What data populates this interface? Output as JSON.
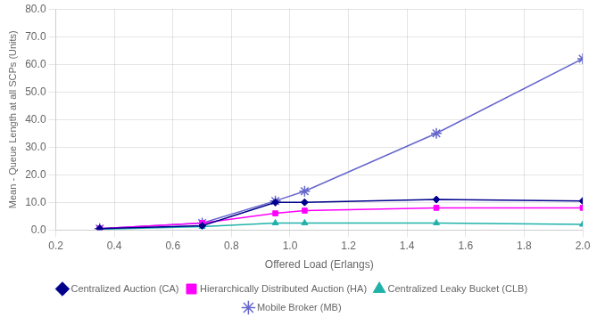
{
  "chart_data": {
    "type": "line",
    "xlabel": "Offered Load (Erlangs)",
    "ylabel": "Mean - Queue Length at all SCPs (Units)",
    "x": [
      0.35,
      0.7,
      0.95,
      1.05,
      1.5,
      2.0
    ],
    "series": [
      {
        "name": "Centralized Auction (CA)",
        "color": "#00008B",
        "marker": "diamond",
        "values": [
          0.5,
          1.5,
          10.0,
          10.0,
          11.0,
          10.5
        ]
      },
      {
        "name": "Hierarchically Distributed Auction (HA)",
        "color": "#FF00FF",
        "marker": "square",
        "values": [
          0.5,
          2.5,
          6.0,
          7.0,
          8.0,
          8.0
        ]
      },
      {
        "name": "Centralized Leaky Bucket (CLB)",
        "color": "#20B2AA",
        "marker": "triangle",
        "values": [
          0.2,
          1.2,
          2.5,
          2.5,
          2.5,
          2.0
        ]
      },
      {
        "name": "Mobile Broker (MB)",
        "color": "#6666CC",
        "marker": "star",
        "values": [
          0.5,
          2.5,
          10.5,
          14.0,
          35.0,
          62.0
        ]
      }
    ],
    "xlim": [
      0.2,
      2.0
    ],
    "ylim": [
      0.0,
      80.0
    ],
    "xticks": [
      0.2,
      0.4,
      0.6,
      0.8,
      {
        "value": 1,
        "label": "1.0"
      },
      1.2,
      1.4,
      1.6,
      1.8,
      {
        "value": 2,
        "label": "2.0"
      }
    ],
    "yticks": [
      {
        "value": 0,
        "label": "0.0"
      },
      {
        "value": 10,
        "label": "10.0"
      },
      {
        "value": 20,
        "label": "20.0"
      },
      {
        "value": 30,
        "label": "30.0"
      },
      {
        "value": 40,
        "label": "40.0"
      },
      {
        "value": 50,
        "label": "50.0"
      },
      {
        "value": 60,
        "label": "60.0"
      },
      {
        "value": 70,
        "label": "70.0"
      },
      {
        "value": 80,
        "label": "80.0"
      }
    ],
    "grid": true,
    "legend": "bottom"
  }
}
